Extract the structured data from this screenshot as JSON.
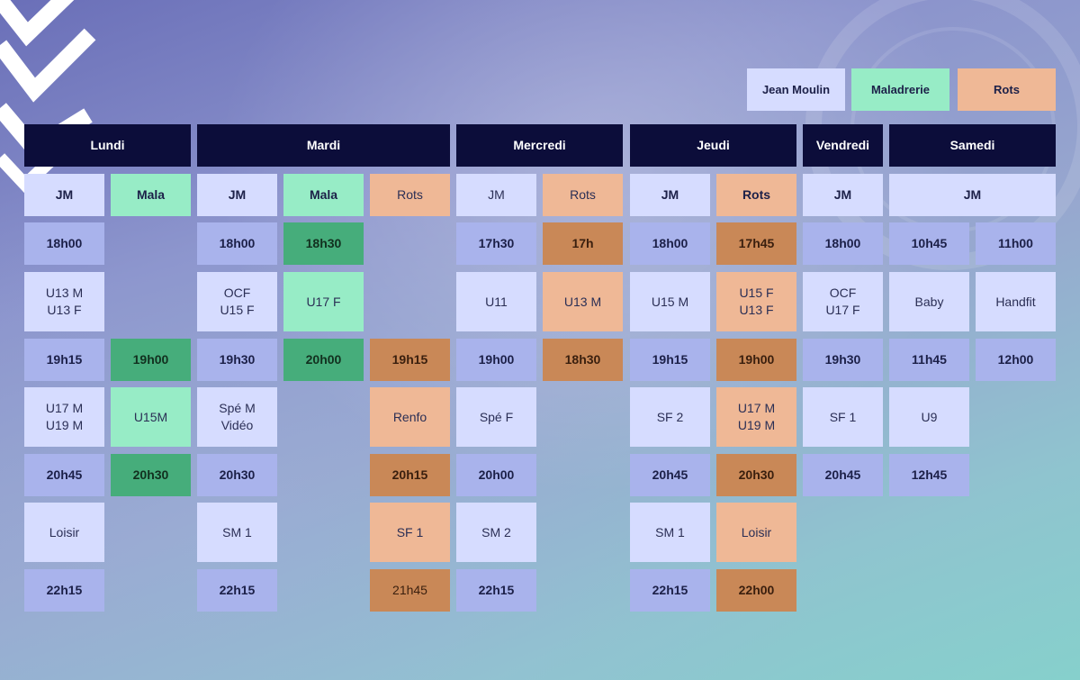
{
  "legend": [
    "Jean Moulin",
    "Maladrerie",
    "Rots"
  ],
  "days": [
    "Lundi",
    "Mardi",
    "Mercredi",
    "Jeudi",
    "Vendredi",
    "Samedi"
  ],
  "venues": {
    "lundi_1": "JM",
    "lundi_2": "Mala",
    "mardi_1": "JM",
    "mardi_2": "Mala",
    "mardi_3": "Rots",
    "mercredi_1": "JM",
    "mercredi_2": "Rots",
    "jeudi_1": "JM",
    "jeudi_2": "Rots",
    "vendredi_1": "JM",
    "samedi_1": "JM"
  },
  "lundi": {
    "jm": [
      "18h00",
      "U13 M\nU13 F",
      "19h15",
      "U17 M\nU19 M",
      "20h45",
      "Loisir",
      "22h15"
    ],
    "mala": [
      "19h00",
      "U15M",
      "20h30"
    ]
  },
  "mardi": {
    "jm": [
      "18h00",
      "OCF\nU15 F",
      "19h30",
      "Spé M\nVidéo",
      "20h30",
      "SM 1",
      "22h15"
    ],
    "mala": [
      "18h30",
      "U17 F",
      "20h00"
    ],
    "rots": [
      "19h15",
      "Renfo",
      "20h15",
      "SF 1",
      "21h45"
    ]
  },
  "mercredi": {
    "jm": [
      "17h30",
      "U11",
      "19h00",
      "Spé F",
      "20h00",
      "SM 2",
      "22h15"
    ],
    "rots": [
      "17h",
      "U13 M",
      "18h30"
    ]
  },
  "jeudi": {
    "jm": [
      "18h00",
      "U15 M",
      "19h15",
      "SF 2",
      "20h45",
      "SM 1",
      "22h15"
    ],
    "rots": [
      "17h45",
      "U15 F\nU13 F",
      "19h00",
      "U17 M\nU19 M",
      "20h30",
      "Loisir",
      "22h00"
    ]
  },
  "vendredi": {
    "jm": [
      "18h00",
      "OCF\nU17 F",
      "19h30",
      "SF 1",
      "20h45"
    ]
  },
  "samedi": {
    "col1": [
      "10h45",
      "Baby",
      "11h45",
      "U9",
      "12h45"
    ],
    "col2": [
      "11h00",
      "Handfit",
      "12h00"
    ]
  },
  "colors": {
    "header": "#0c0d3a",
    "jean_moulin_light": "#d6dcff",
    "jean_moulin_time": "#a9b3ec",
    "maladrerie_light": "#97ecc6",
    "maladrerie_time": "#46ad7b",
    "rots_light": "#efb896",
    "rots_time": "#c98857"
  }
}
